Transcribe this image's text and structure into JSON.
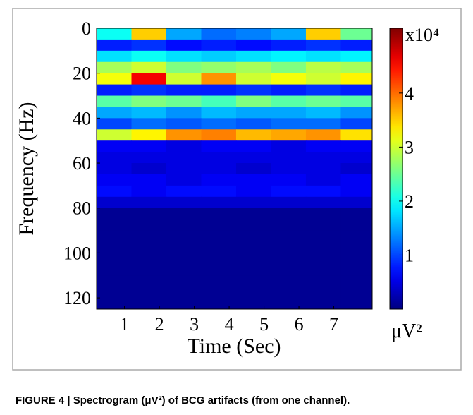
{
  "chart_data": {
    "type": "heatmap",
    "x_label": "Time (Sec)",
    "y_label": "Frequency (Hz)",
    "x": [
      0.7,
      1.7,
      2.7,
      3.7,
      4.7,
      5.7,
      6.7,
      7.7
    ],
    "y": [
      2.5,
      7.5,
      12.5,
      17.5,
      22.5,
      27.5,
      32.5,
      37.5,
      42.5,
      47.5,
      52.5,
      57.5,
      62.5,
      67.5,
      72.5,
      77.5,
      82.5,
      87.5,
      92.5,
      97.5,
      102.5,
      107.5,
      112.5,
      117.5,
      122.5
    ],
    "z": [
      [
        2.0,
        3.5,
        1.5,
        1.2,
        1.3,
        1.5,
        3.5,
        2.5
      ],
      [
        0.8,
        0.9,
        0.7,
        0.8,
        0.7,
        0.8,
        0.9,
        0.8
      ],
      [
        1.8,
        2.0,
        1.8,
        1.7,
        1.8,
        1.9,
        1.8,
        1.9
      ],
      [
        2.8,
        3.0,
        2.6,
        2.7,
        2.8,
        2.6,
        2.9,
        2.8
      ],
      [
        3.2,
        4.6,
        3.0,
        3.8,
        3.0,
        3.2,
        3.0,
        3.3
      ],
      [
        0.8,
        0.9,
        0.8,
        0.8,
        0.9,
        0.8,
        0.9,
        0.8
      ],
      [
        2.4,
        2.6,
        2.5,
        2.3,
        2.6,
        2.4,
        2.5,
        2.4
      ],
      [
        1.5,
        1.6,
        1.4,
        1.6,
        1.5,
        1.5,
        1.6,
        1.4
      ],
      [
        1.0,
        1.2,
        1.1,
        1.2,
        1.1,
        1.2,
        1.2,
        1.0
      ],
      [
        3.0,
        3.3,
        3.8,
        3.9,
        3.6,
        3.7,
        3.8,
        3.4
      ],
      [
        0.6,
        0.6,
        0.5,
        0.6,
        0.6,
        0.5,
        0.6,
        0.6
      ],
      [
        0.5,
        0.5,
        0.5,
        0.5,
        0.5,
        0.5,
        0.5,
        0.5
      ],
      [
        0.5,
        0.4,
        0.5,
        0.5,
        0.4,
        0.5,
        0.5,
        0.4
      ],
      [
        0.6,
        0.6,
        0.5,
        0.6,
        0.6,
        0.6,
        0.5,
        0.6
      ],
      [
        0.7,
        0.6,
        0.7,
        0.7,
        0.6,
        0.7,
        0.7,
        0.6
      ],
      [
        0.4,
        0.4,
        0.4,
        0.4,
        0.4,
        0.4,
        0.4,
        0.4
      ],
      [
        0.1,
        0.1,
        0.1,
        0.1,
        0.1,
        0.1,
        0.1,
        0.1
      ],
      [
        0.1,
        0.1,
        0.1,
        0.1,
        0.1,
        0.1,
        0.1,
        0.1
      ],
      [
        0.1,
        0.1,
        0.1,
        0.1,
        0.1,
        0.1,
        0.1,
        0.1
      ],
      [
        0.1,
        0.1,
        0.1,
        0.1,
        0.1,
        0.1,
        0.1,
        0.1
      ],
      [
        0.1,
        0.1,
        0.1,
        0.1,
        0.1,
        0.1,
        0.1,
        0.1
      ],
      [
        0.1,
        0.1,
        0.1,
        0.1,
        0.1,
        0.1,
        0.1,
        0.1
      ],
      [
        0.1,
        0.1,
        0.1,
        0.1,
        0.1,
        0.1,
        0.1,
        0.1
      ],
      [
        0.1,
        0.1,
        0.1,
        0.1,
        0.1,
        0.1,
        0.1,
        0.1
      ],
      [
        0.1,
        0.1,
        0.1,
        0.1,
        0.1,
        0.1,
        0.1,
        0.1
      ]
    ],
    "xlim": [
      0.2,
      8.1
    ],
    "ylim": [
      0,
      125
    ],
    "y_inverted": true,
    "xticks": [
      1,
      2,
      3,
      4,
      5,
      6,
      7
    ],
    "yticks": [
      0,
      20,
      40,
      60,
      80,
      100,
      120
    ],
    "colormap": "jet",
    "colorbar": {
      "zlim": [
        0,
        5.2
      ],
      "ticks": [
        1,
        2,
        3,
        4
      ],
      "multiplier": "x10⁴",
      "unit": "μV²"
    }
  },
  "caption": "FIGURE 4 | Spectrogram (μV²) of BCG artifacts (from one channel)."
}
